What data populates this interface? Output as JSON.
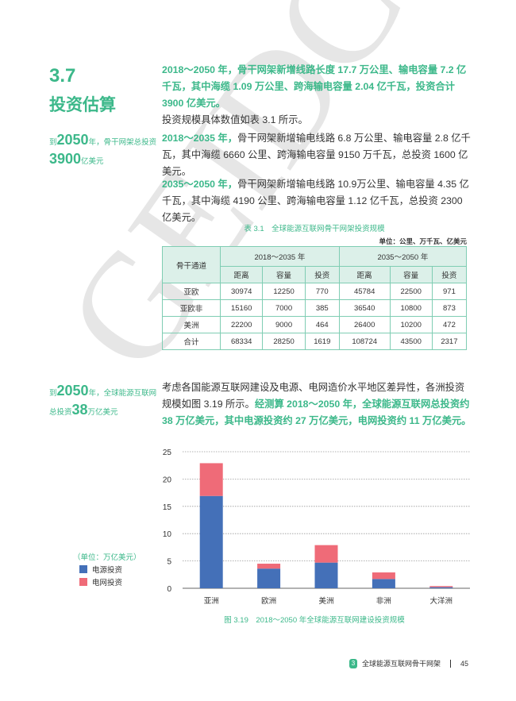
{
  "watermark": "GEIDCO",
  "section": {
    "number": "3.7",
    "title": "投资估算"
  },
  "sidebar_notes": [
    {
      "pre": "到",
      "big": "2050",
      "mid": "年，骨干网架总投资",
      "big2": "3900",
      "post": "亿美元"
    },
    {
      "pre": "到",
      "big": "2050",
      "mid": "年，全球能源互联网",
      "pre2": "总投资",
      "big2": "38",
      "post": "万亿美元"
    }
  ],
  "paragraphs": {
    "p1": {
      "highlight": "2018～2050 年，骨干网架新增线路长度 17.7 万公里、输电容量 7.2 亿千瓦，其中海缆 1.09 万公里、跨海输电容量 2.04 亿千瓦，投资合计 3900 亿美元。",
      "text": "投资规模具体数值如表 3.1 所示。"
    },
    "p2": {
      "highlight": "2018～2035 年，",
      "text": "骨干网架新增输电线路 6.8 万公里、输电容量 2.8 亿千瓦，其中海缆 6660 公里、跨海输电容量 9150 万千瓦，总投资 1600 亿美元。"
    },
    "p3": {
      "highlight": "2035～2050 年，",
      "text": "骨干网架新增输电线路 10.9万公里、输电容量 4.35 亿千瓦，其中海缆 4190 公里、跨海输电容量 1.12 亿千瓦，总投资 2300 亿美元。"
    },
    "p4": {
      "text": "考虑各国能源互联网建设及电源、电网造价水平地区差异性，各洲投资规模如图 3.19 所示。",
      "highlight": "经测算 2018～2050 年，全球能源互联网总投资约 38 万亿美元，其中电源投资约 27 万亿美元，电网投资约 11 万亿美元。"
    }
  },
  "table": {
    "caption": "表 3.1　全球能源互联网骨干网架投资规模",
    "unit": "单位：公里、万千瓦、亿美元",
    "row_header": "骨干通道",
    "periods": [
      "2018～2035 年",
      "2035～2050 年"
    ],
    "subheaders": [
      "距离",
      "容量",
      "投资",
      "距离",
      "容量",
      "投资"
    ],
    "rows": [
      [
        "亚欧",
        "30974",
        "12250",
        "770",
        "45784",
        "22500",
        "971"
      ],
      [
        "亚欧非",
        "15160",
        "7000",
        "385",
        "36540",
        "10800",
        "873"
      ],
      [
        "美洲",
        "22200",
        "9000",
        "464",
        "26400",
        "10200",
        "472"
      ],
      [
        "合计",
        "68334",
        "28250",
        "1619",
        "108724",
        "43500",
        "2317"
      ]
    ]
  },
  "chart_data": {
    "type": "bar",
    "stacked": true,
    "categories": [
      "亚洲",
      "欧洲",
      "美洲",
      "非洲",
      "大洋洲"
    ],
    "series": [
      {
        "name": "电源投资",
        "color": "#4470b8",
        "values": [
          16.9,
          3.6,
          4.7,
          1.7,
          0.2
        ]
      },
      {
        "name": "电网投资",
        "color": "#ef6b78",
        "values": [
          6.0,
          0.9,
          3.2,
          1.2,
          0.2
        ]
      }
    ],
    "ylim": [
      0,
      25
    ],
    "yticks": [
      "0",
      "5",
      "10",
      "15",
      "20",
      "25"
    ],
    "grid": true,
    "unit_label": "（单位：万亿美元）",
    "legend_position": "left",
    "caption": "图 3.19　2018～2050 年全球能源互联网建设投资规模"
  },
  "footer": {
    "chapter_num": "3",
    "chapter_title": "全球能源互联网骨干网架",
    "page": "45"
  }
}
